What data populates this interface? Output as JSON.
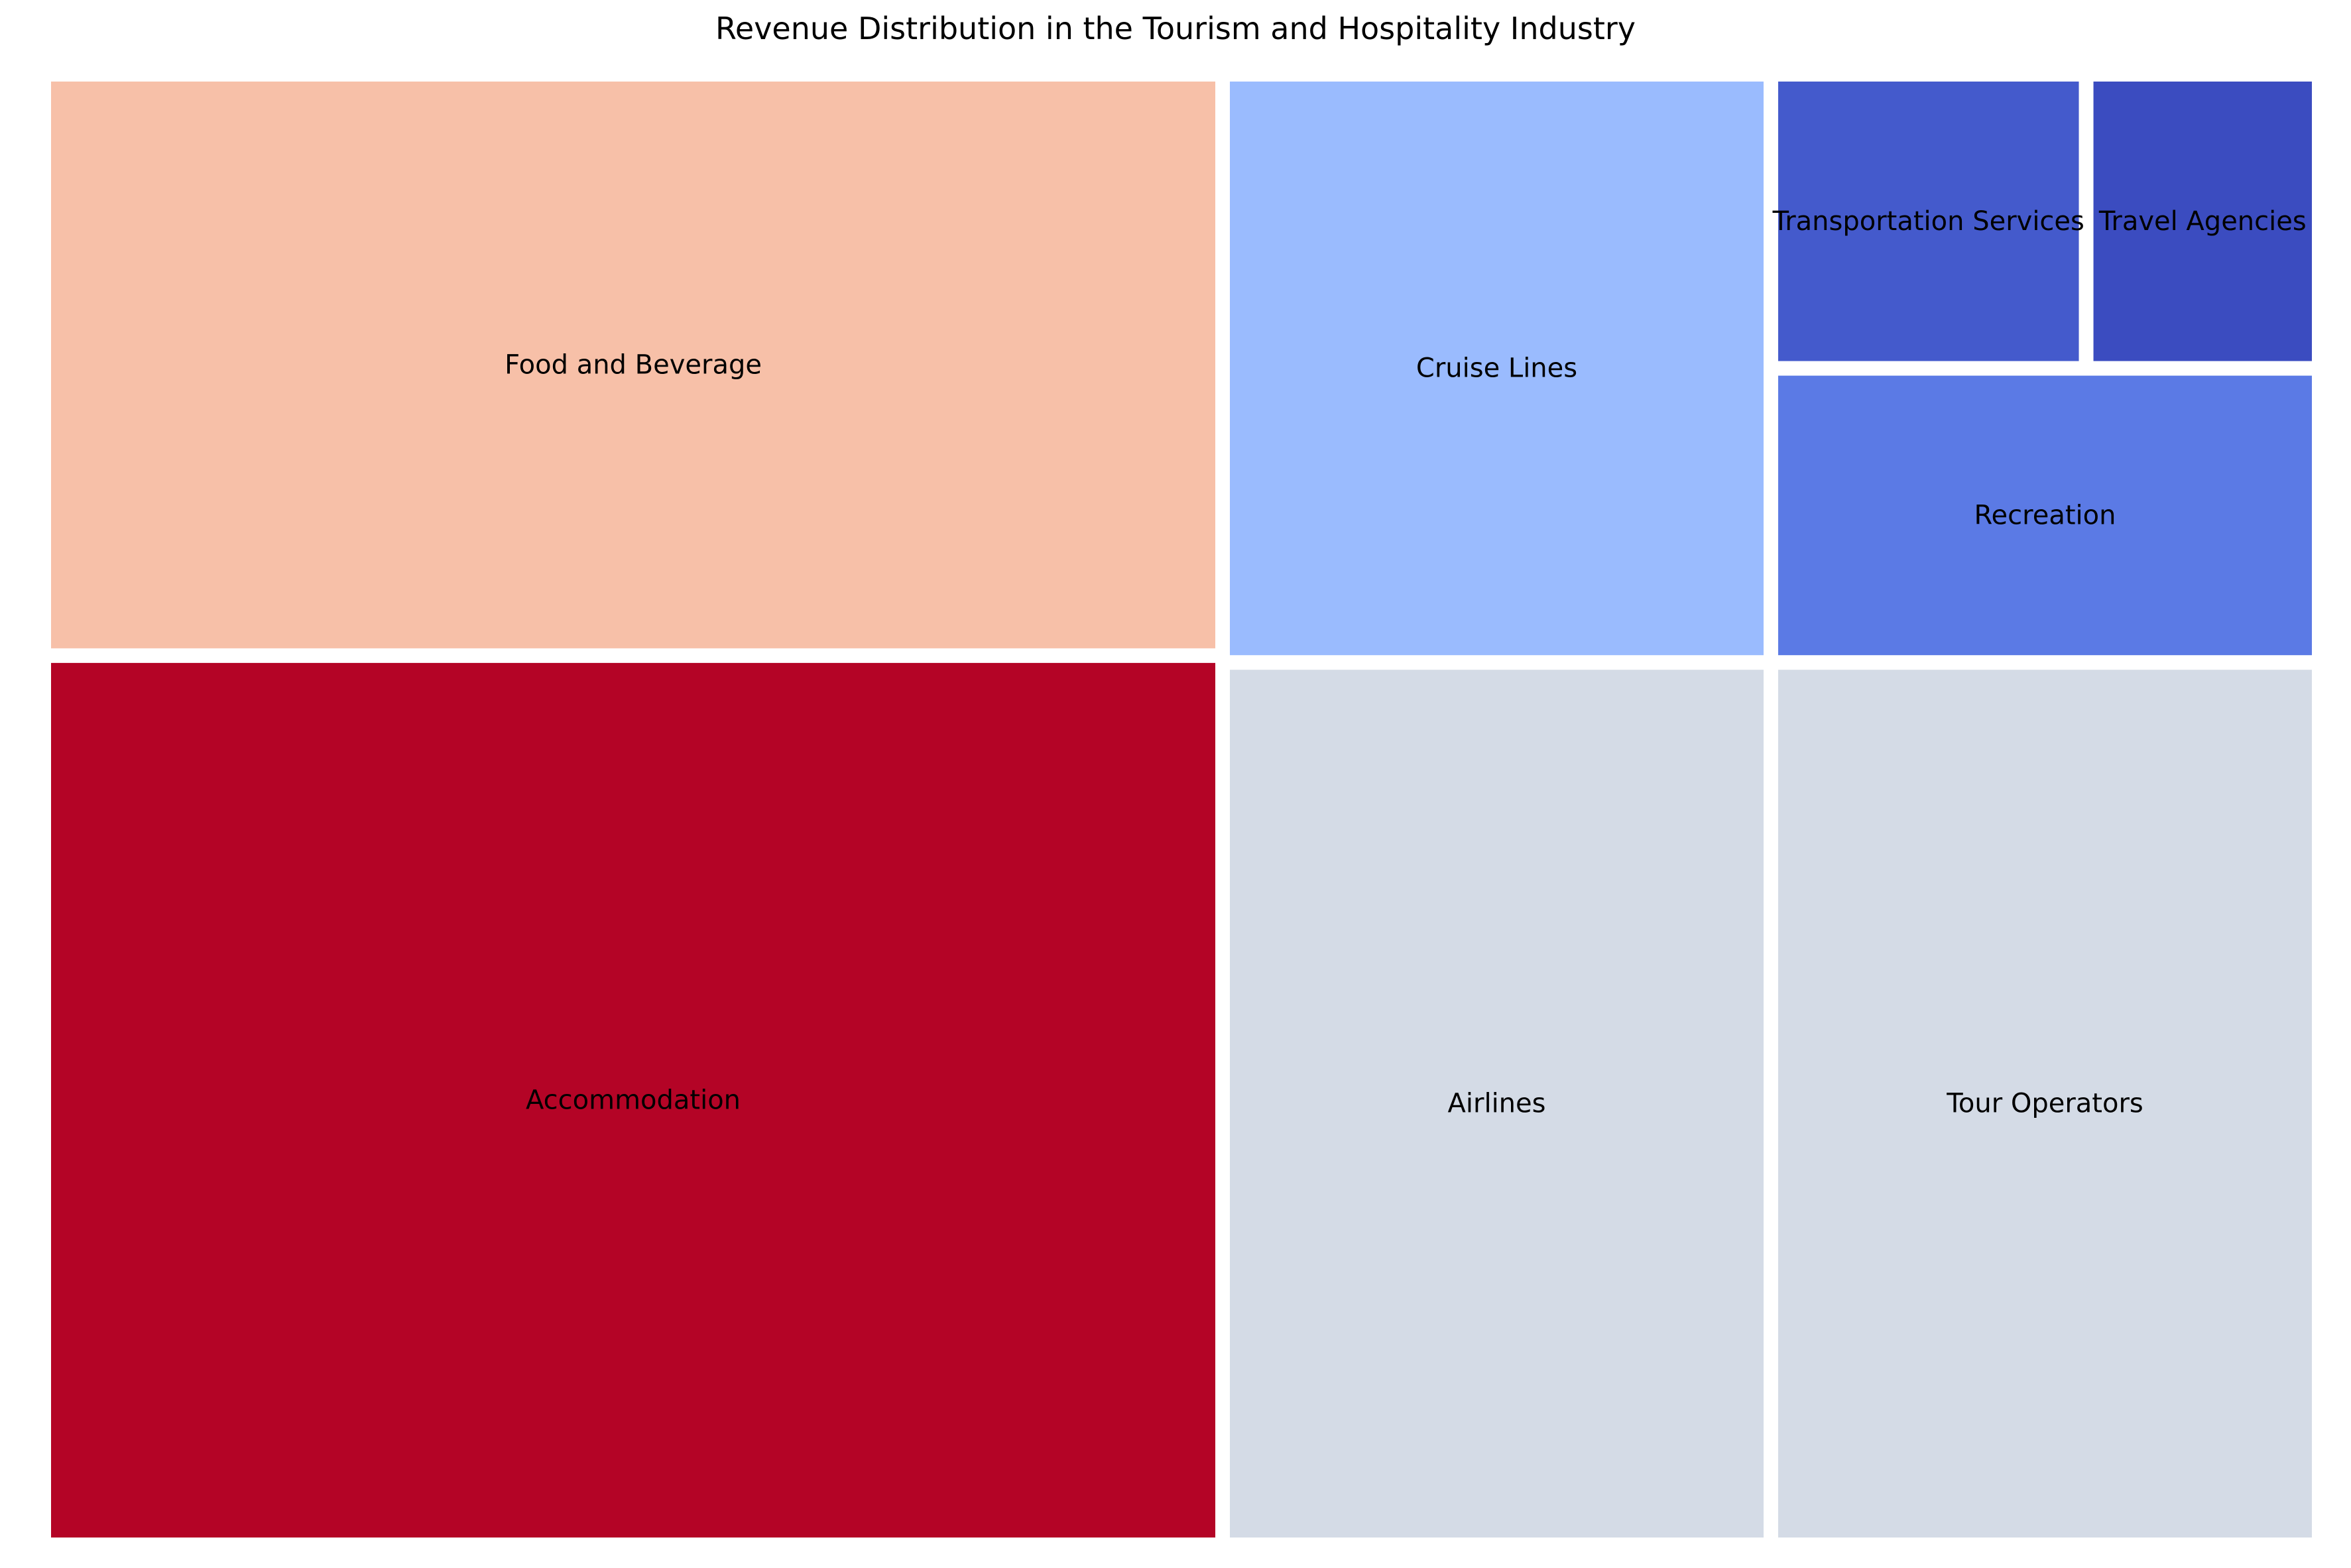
{
  "chart_data": {
    "type": "treemap",
    "title": "Revenue Distribution in the Tourism and Hospitality Industry",
    "colormap": "coolwarm",
    "items": [
      {
        "label": "Accommodation",
        "value": 26,
        "color": "#b40426"
      },
      {
        "label": "Food and Beverage",
        "value": 17,
        "color": "#f7c0a8"
      },
      {
        "label": "Airlines",
        "value": 12,
        "color": "#d4dbe6"
      },
      {
        "label": "Tour Operators",
        "value": 12,
        "color": "#d4dbe6"
      },
      {
        "label": "Cruise Lines",
        "value": 8,
        "color": "#9abbfe"
      },
      {
        "label": "Recreation",
        "value": 4,
        "color": "#5b7ae5"
      },
      {
        "label": "Transportation Services",
        "value": 2.3,
        "color": "#445acc"
      },
      {
        "label": "Travel Agencies",
        "value": 1.7,
        "color": "#3b4cc0"
      }
    ]
  }
}
